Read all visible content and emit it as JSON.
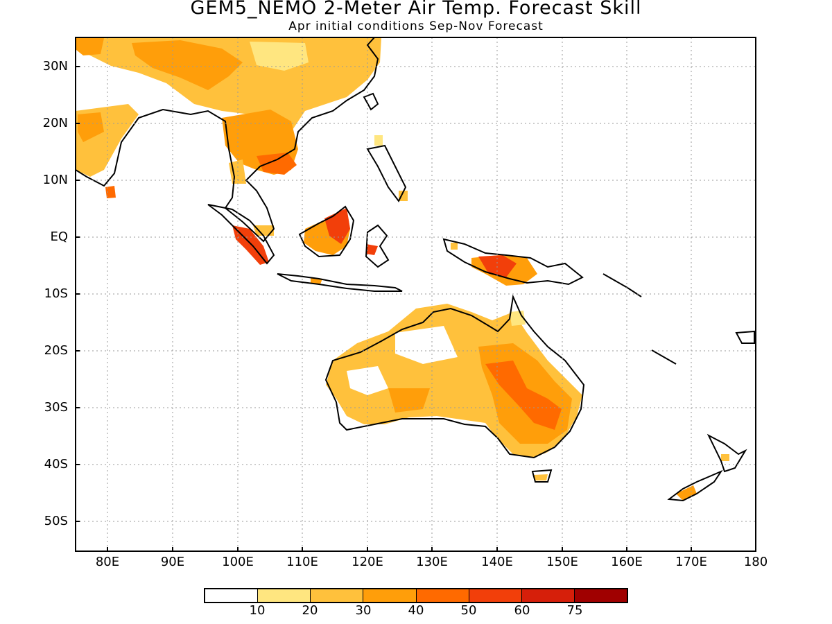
{
  "title": "GEM5_NEMO 2-Meter Air Temp. Forecast Skill",
  "subtitle": "Apr initial conditions  Sep-Nov Forecast",
  "y_axis_labels": [
    "30N",
    "20N",
    "10N",
    "EQ",
    "10S",
    "20S",
    "30S",
    "40S",
    "50S"
  ],
  "x_axis_labels": [
    "80E",
    "90E",
    "100E",
    "110E",
    "120E",
    "130E",
    "140E",
    "150E",
    "160E",
    "170E",
    "180"
  ],
  "map_extent": {
    "lon": [
      75,
      180
    ],
    "lat": [
      -55,
      35
    ]
  },
  "colorbar": {
    "colors": [
      "#ffffff",
      "#ffe680",
      "#ffc13c",
      "#ff9e0a",
      "#ff6a00",
      "#f23f0a",
      "#d61f0a",
      "#a00000"
    ],
    "labels": [
      "10",
      "20",
      "30",
      "40",
      "50",
      "60",
      "75"
    ]
  }
}
